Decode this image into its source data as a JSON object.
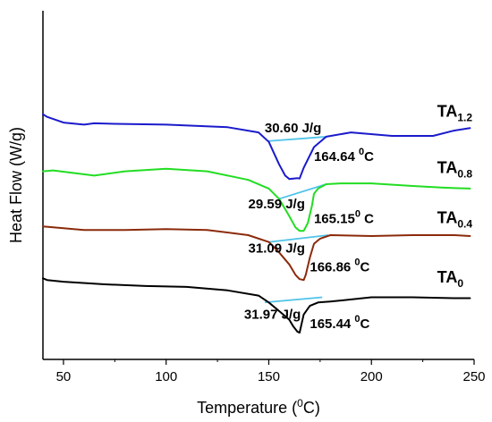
{
  "chart_data": {
    "type": "line",
    "title": "",
    "xlabel": {
      "main": "Temperature (",
      "sup": "0",
      "tail": "C)"
    },
    "ylabel": "Heat Flow (W/g)",
    "xlim": [
      40,
      250
    ],
    "x_ticks": [
      50,
      100,
      150,
      200,
      250
    ],
    "y_ticks_shown": false,
    "grid": false,
    "legend": "none",
    "series": [
      {
        "key": "TA1.2",
        "label_base": "TA",
        "label_sub": "1.2",
        "color": "#1a1acc",
        "x": [
          40,
          42,
          50,
          60,
          65,
          75,
          100,
          130,
          145,
          150,
          155,
          158,
          160,
          162,
          164,
          165,
          167,
          172,
          178,
          190,
          210,
          230,
          240,
          248
        ],
        "y": [
          0.0,
          0.15,
          0.48,
          0.6,
          0.52,
          0.55,
          0.6,
          0.75,
          1.05,
          1.6,
          2.9,
          3.55,
          3.75,
          3.72,
          3.7,
          3.72,
          3.1,
          1.9,
          1.3,
          1.05,
          1.25,
          1.25,
          0.95,
          0.8
        ]
      },
      {
        "key": "TA0.8",
        "label_base": "TA",
        "label_sub": "0.8",
        "color": "#22dd22",
        "x": [
          40,
          45,
          55,
          65,
          80,
          100,
          120,
          140,
          150,
          155,
          160,
          163,
          165,
          167,
          169,
          171,
          172,
          174,
          178,
          185,
          200,
          220,
          235,
          248
        ],
        "y": [
          3.3,
          3.25,
          3.4,
          3.55,
          3.3,
          3.15,
          3.3,
          3.8,
          4.3,
          4.9,
          5.9,
          6.55,
          6.75,
          6.75,
          6.3,
          5.3,
          4.6,
          4.3,
          4.05,
          4.0,
          4.0,
          4.15,
          4.25,
          4.3
        ]
      },
      {
        "key": "TA0.4",
        "label_base": "TA",
        "label_sub": "0.4",
        "color": "#8b2a0a",
        "x": [
          40,
          45,
          60,
          80,
          100,
          120,
          140,
          150,
          155,
          160,
          163,
          165,
          167,
          168,
          170,
          172,
          175,
          180,
          200,
          220,
          240,
          248
        ],
        "y": [
          6.5,
          6.55,
          6.7,
          6.7,
          6.65,
          6.7,
          7.0,
          7.4,
          8.0,
          8.7,
          9.3,
          9.55,
          9.6,
          9.3,
          8.3,
          7.5,
          7.2,
          7.0,
          7.05,
          7.0,
          7.0,
          7.05
        ]
      },
      {
        "key": "TA0",
        "label_base": "TA",
        "label_sub": "0",
        "color": "#000000",
        "x": [
          40,
          42,
          50,
          70,
          90,
          110,
          130,
          145,
          150,
          155,
          160,
          162,
          164,
          165,
          167,
          170,
          174,
          180,
          200,
          220,
          240,
          248
        ],
        "y": [
          9.5,
          9.6,
          9.7,
          9.85,
          9.95,
          10.0,
          10.2,
          10.5,
          10.9,
          11.4,
          11.9,
          12.3,
          12.6,
          12.65,
          11.6,
          11.1,
          10.9,
          10.85,
          10.6,
          10.6,
          10.65,
          10.65
        ]
      }
    ],
    "baselines": [
      {
        "series": "TA1.2",
        "x1": 150,
        "y1": 1.55,
        "x2": 178,
        "y2": 1.3
      },
      {
        "series": "TA0.8",
        "x1": 155,
        "y1": 4.9,
        "x2": 178,
        "y2": 4.05
      },
      {
        "series": "TA0.4",
        "x1": 150,
        "y1": 7.4,
        "x2": 179,
        "y2": 7.0
      },
      {
        "series": "TA0",
        "x1": 148,
        "y1": 10.9,
        "x2": 176,
        "y2": 10.6
      }
    ],
    "baseline_color": "#4fc3e8",
    "annotations": [
      {
        "key": "enthalpy_TA1.2",
        "text": "30.60 J/g",
        "x": 148,
        "y": 1.05,
        "anchor": "start"
      },
      {
        "key": "peak_TA1.2",
        "main": "164.64 ",
        "sup": "0",
        "tail": "C",
        "x": 172,
        "y": 2.7,
        "anchor": "start"
      },
      {
        "key": "enthalpy_TA0.8",
        "text": "29.59 J/g",
        "x": 140,
        "y": 5.45,
        "anchor": "start"
      },
      {
        "key": "peak_TA0.8",
        "main": "165.15",
        "sup": "0",
        "tail": " C",
        "x": 172,
        "y": 6.3,
        "anchor": "start"
      },
      {
        "key": "enthalpy_TA0.4",
        "text": "31.09 J/g",
        "x": 140,
        "y": 8.0,
        "anchor": "start"
      },
      {
        "key": "peak_TA0.4",
        "main": "166.86 ",
        "sup": "0",
        "tail": "C",
        "x": 170,
        "y": 9.1,
        "anchor": "start"
      },
      {
        "key": "enthalpy_TA0",
        "text": "31.97 J/g",
        "x": 138,
        "y": 11.85,
        "anchor": "start"
      },
      {
        "key": "peak_TA0",
        "main": "165.44 ",
        "sup": "0",
        "tail": "C",
        "x": 170,
        "y": 12.4,
        "anchor": "start"
      }
    ],
    "series_labels": [
      {
        "series": "TA1.2",
        "x": 232,
        "y": 0.15
      },
      {
        "series": "TA0.8",
        "x": 232,
        "y": 3.4
      },
      {
        "series": "TA0.4",
        "x": 232,
        "y": 6.3
      },
      {
        "series": "TA0",
        "x": 232,
        "y": 9.75
      }
    ],
    "y_orientation": "down"
  }
}
